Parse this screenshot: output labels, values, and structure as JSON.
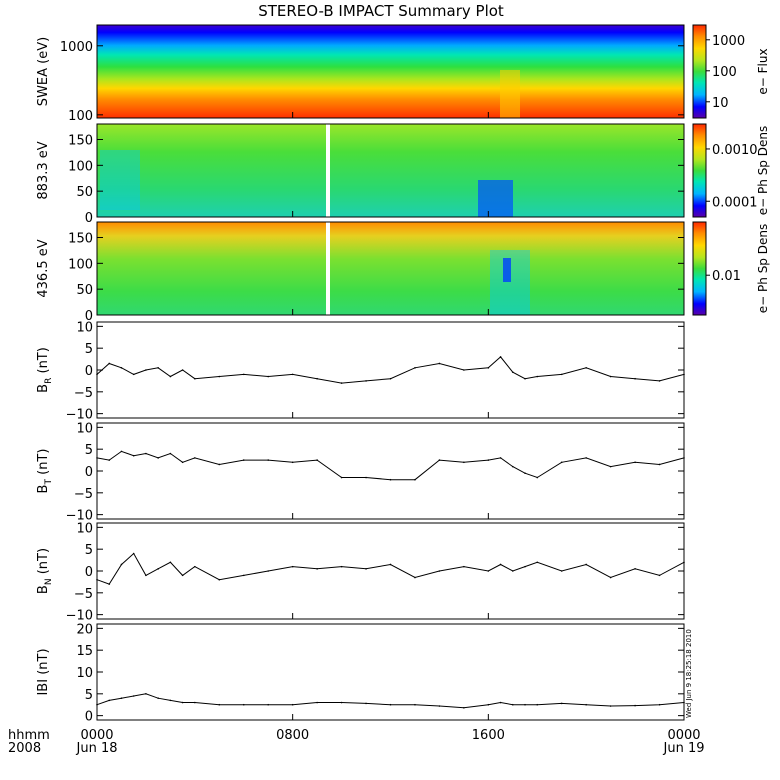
{
  "title": "STEREO-B IMPACT Summary Plot",
  "timestamp_label": "Wed Jun  9 18:25:18 2010",
  "x_axis": {
    "row1_label": "hhmm",
    "row2_label": "2008",
    "ticks": [
      {
        "hour": 0,
        "label": "0000",
        "sub": "Jun 18"
      },
      {
        "hour": 8,
        "label": "0800",
        "sub": ""
      },
      {
        "hour": 16,
        "label": "1600",
        "sub": ""
      },
      {
        "hour": 24,
        "label": "0000",
        "sub": "Jun 19"
      }
    ],
    "range_hours": [
      0,
      24
    ]
  },
  "colors": {
    "colormap": [
      "#5a00a8",
      "#0000ff",
      "#00b4ff",
      "#00e6b4",
      "#3cdc3c",
      "#b4e61e",
      "#ffd700",
      "#ff8c00",
      "#ff2800"
    ]
  },
  "chart_data": [
    {
      "type": "heatmap",
      "id": "swea",
      "ylabel": "SWEA (eV)",
      "yscale": "log",
      "ylim": [
        90,
        2000
      ],
      "yticks": [
        {
          "v": 100,
          "label": "100"
        },
        {
          "v": 1000,
          "label": "1000"
        }
      ],
      "colorbar": {
        "label": "e−  Flux",
        "scale": "log",
        "range": [
          3,
          3000
        ],
        "ticks": [
          {
            "v": 10,
            "label": "10"
          },
          {
            "v": 100,
            "label": "100"
          },
          {
            "v": 1000,
            "label": "1000"
          }
        ]
      }
    },
    {
      "type": "heatmap",
      "id": "pad883",
      "ylabel": "883.3 eV",
      "yscale": "linear",
      "ylim": [
        0,
        180
      ],
      "yticks": [
        {
          "v": 0,
          "label": "0"
        },
        {
          "v": 50,
          "label": "50"
        },
        {
          "v": 100,
          "label": "100"
        },
        {
          "v": 150,
          "label": "150"
        }
      ],
      "colorbar": {
        "label": "e−  Ph Sp Dens",
        "scale": "log",
        "range": [
          5e-05,
          0.003
        ],
        "ticks": [
          {
            "v": 0.0001,
            "label": "0.0001"
          },
          {
            "v": 0.001,
            "label": "0.0010"
          }
        ]
      }
    },
    {
      "type": "heatmap",
      "id": "pad436",
      "ylabel": "436.5 eV",
      "yscale": "linear",
      "ylim": [
        0,
        180
      ],
      "yticks": [
        {
          "v": 0,
          "label": "0"
        },
        {
          "v": 50,
          "label": "50"
        },
        {
          "v": 100,
          "label": "100"
        },
        {
          "v": 150,
          "label": "150"
        }
      ],
      "colorbar": {
        "label": "e−  Ph Sp Dens",
        "scale": "log",
        "range": [
          0.003,
          0.05
        ],
        "ticks": [
          {
            "v": 0.01,
            "label": "0.01"
          }
        ]
      }
    },
    {
      "type": "line",
      "id": "br",
      "ylabel": "B",
      "ylabel_sub": "R",
      "ylabel_unit": " (nT)",
      "ylim": [
        -11,
        11
      ],
      "yticks": [
        {
          "v": -10,
          "label": "−10"
        },
        {
          "v": -5,
          "label": "−5"
        },
        {
          "v": 0,
          "label": "0"
        },
        {
          "v": 5,
          "label": "5"
        },
        {
          "v": 10,
          "label": "10"
        }
      ],
      "x": [
        0,
        0.5,
        1,
        1.5,
        2,
        2.5,
        3,
        3.5,
        4,
        5,
        6,
        7,
        8,
        9,
        10,
        11,
        12,
        13,
        14,
        15,
        16,
        16.5,
        17,
        17.5,
        18,
        19,
        20,
        21,
        22,
        23,
        24
      ],
      "y": [
        -1,
        1.5,
        0.5,
        -1,
        0,
        0.5,
        -1.5,
        0,
        -2,
        -1.5,
        -1,
        -1.5,
        -1,
        -2,
        -3,
        -2.5,
        -2,
        0.5,
        1.5,
        0,
        0.5,
        3,
        -0.5,
        -2,
        -1.5,
        -1,
        0.5,
        -1.5,
        -2,
        -2.5,
        -1
      ]
    },
    {
      "type": "line",
      "id": "bt",
      "ylabel": "B",
      "ylabel_sub": "T",
      "ylabel_unit": " (nT)",
      "ylim": [
        -11,
        11
      ],
      "yticks": [
        {
          "v": -10,
          "label": "−10"
        },
        {
          "v": -5,
          "label": "−5"
        },
        {
          "v": 0,
          "label": "0"
        },
        {
          "v": 5,
          "label": "5"
        },
        {
          "v": 10,
          "label": "10"
        }
      ],
      "x": [
        0,
        0.5,
        1,
        1.5,
        2,
        2.5,
        3,
        3.5,
        4,
        5,
        6,
        7,
        8,
        9,
        10,
        11,
        12,
        13,
        14,
        15,
        16,
        16.5,
        17,
        17.5,
        18,
        19,
        20,
        21,
        22,
        23,
        24
      ],
      "y": [
        3,
        2.5,
        4.5,
        3.5,
        4,
        3,
        4,
        2,
        3,
        1.5,
        2.5,
        2.5,
        2,
        2.5,
        -1.5,
        -1.5,
        -2,
        -2,
        2.5,
        2,
        2.5,
        3,
        1,
        -0.5,
        -1.5,
        2,
        3,
        1,
        2,
        1.5,
        3
      ]
    },
    {
      "type": "line",
      "id": "bn",
      "ylabel": "B",
      "ylabel_sub": "N",
      "ylabel_unit": " (nT)",
      "ylim": [
        -11,
        11
      ],
      "yticks": [
        {
          "v": -10,
          "label": "−10"
        },
        {
          "v": -5,
          "label": "−5"
        },
        {
          "v": 0,
          "label": "0"
        },
        {
          "v": 5,
          "label": "5"
        },
        {
          "v": 10,
          "label": "10"
        }
      ],
      "x": [
        0,
        0.5,
        1,
        1.5,
        2,
        2.5,
        3,
        3.5,
        4,
        5,
        6,
        7,
        8,
        9,
        10,
        11,
        12,
        13,
        14,
        15,
        16,
        16.5,
        17,
        17.5,
        18,
        19,
        20,
        21,
        22,
        23,
        24
      ],
      "y": [
        -2,
        -3,
        1.5,
        4,
        -1,
        0.5,
        2,
        -1,
        1,
        -2,
        -1,
        0,
        1,
        0.5,
        1,
        0.5,
        1.5,
        -1.5,
        0,
        1,
        0,
        1.5,
        0,
        1,
        2,
        0,
        1.5,
        -1.5,
        0.5,
        -1,
        2
      ]
    },
    {
      "type": "line",
      "id": "bmag",
      "ylabel": "IBI",
      "ylabel_sub": "",
      "ylabel_unit": " (nT)",
      "ylim": [
        -1,
        21
      ],
      "yticks": [
        {
          "v": 0,
          "label": "0"
        },
        {
          "v": 5,
          "label": "5"
        },
        {
          "v": 10,
          "label": "10"
        },
        {
          "v": 15,
          "label": "15"
        },
        {
          "v": 20,
          "label": "20"
        }
      ],
      "x": [
        0,
        0.5,
        1,
        1.5,
        2,
        2.5,
        3,
        3.5,
        4,
        5,
        6,
        7,
        8,
        9,
        10,
        11,
        12,
        13,
        14,
        15,
        16,
        16.5,
        17,
        17.5,
        18,
        19,
        20,
        21,
        22,
        23,
        24
      ],
      "y": [
        2.5,
        3.5,
        4,
        4.5,
        5,
        4,
        3.5,
        3,
        3,
        2.5,
        2.5,
        2.5,
        2.5,
        3,
        3,
        2.8,
        2.5,
        2.5,
        2.2,
        1.8,
        2.5,
        3,
        2.5,
        2.5,
        2.5,
        2.8,
        2.5,
        2.2,
        2.3,
        2.5,
        3
      ]
    }
  ]
}
